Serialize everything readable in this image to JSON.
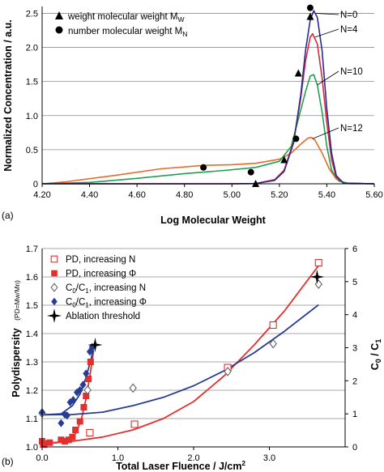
{
  "chart_data": [
    {
      "panel_label": "(a)",
      "type": "line",
      "xlabel": "Log Molecular Weight",
      "ylabel": "Normalized Concentration / a.u.",
      "xlim": [
        4.2,
        5.6
      ],
      "ylim": [
        0,
        2.6
      ],
      "x_ticks": [
        "4.20",
        "4.40",
        "4.60",
        "4.80",
        "5.00",
        "5.20",
        "5.40",
        "5.60"
      ],
      "y_ticks": [
        "0",
        "0.5",
        "1.0",
        "1.5",
        "2.0",
        "2.5"
      ],
      "grid": "horizontal",
      "legend": {
        "placement": "top-left",
        "items": [
          {
            "marker": "triangle",
            "label": "weight molecular weight M",
            "subscript": "W"
          },
          {
            "marker": "circle",
            "label": "number molecular weight M",
            "subscript": "N"
          }
        ]
      },
      "series": [
        {
          "name": "N=0",
          "color": "#2b2b8f",
          "points": [
            [
              4.2,
              0
            ],
            [
              5.0,
              0
            ],
            [
              5.1,
              0.003
            ],
            [
              5.18,
              0.05
            ],
            [
              5.22,
              0.18
            ],
            [
              5.26,
              0.6
            ],
            [
              5.29,
              1.3
            ],
            [
              5.31,
              1.95
            ],
            [
              5.33,
              2.4
            ],
            [
              5.345,
              2.54
            ],
            [
              5.36,
              2.44
            ],
            [
              5.38,
              1.95
            ],
            [
              5.4,
              1.1
            ],
            [
              5.42,
              0.45
            ],
            [
              5.44,
              0.12
            ],
            [
              5.47,
              0.01
            ],
            [
              5.6,
              0
            ]
          ]
        },
        {
          "name": "N=4",
          "color": "#d9263b",
          "points": [
            [
              4.2,
              0
            ],
            [
              5.0,
              0
            ],
            [
              5.1,
              0.004
            ],
            [
              5.18,
              0.06
            ],
            [
              5.22,
              0.2
            ],
            [
              5.26,
              0.62
            ],
            [
              5.29,
              1.25
            ],
            [
              5.31,
              1.8
            ],
            [
              5.33,
              2.15
            ],
            [
              5.34,
              2.2
            ],
            [
              5.36,
              2.05
            ],
            [
              5.38,
              1.55
            ],
            [
              5.4,
              0.9
            ],
            [
              5.42,
              0.35
            ],
            [
              5.44,
              0.1
            ],
            [
              5.47,
              0.01
            ],
            [
              5.6,
              0
            ]
          ]
        },
        {
          "name": "N=10",
          "color": "#20a050",
          "points": [
            [
              4.2,
              0
            ],
            [
              4.4,
              0.02
            ],
            [
              4.6,
              0.08
            ],
            [
              4.8,
              0.15
            ],
            [
              4.95,
              0.19
            ],
            [
              5.1,
              0.24
            ],
            [
              5.2,
              0.33
            ],
            [
              5.25,
              0.55
            ],
            [
              5.28,
              0.95
            ],
            [
              5.31,
              1.35
            ],
            [
              5.33,
              1.58
            ],
            [
              5.345,
              1.6
            ],
            [
              5.36,
              1.45
            ],
            [
              5.38,
              1.05
            ],
            [
              5.4,
              0.55
            ],
            [
              5.42,
              0.2
            ],
            [
              5.45,
              0.04
            ],
            [
              5.5,
              0
            ],
            [
              5.6,
              0
            ]
          ]
        },
        {
          "name": "N=12",
          "color": "#e86a2a",
          "points": [
            [
              4.2,
              0
            ],
            [
              4.3,
              0.03
            ],
            [
              4.5,
              0.12
            ],
            [
              4.7,
              0.22
            ],
            [
              4.88,
              0.27
            ],
            [
              5.0,
              0.28
            ],
            [
              5.1,
              0.3
            ],
            [
              5.2,
              0.36
            ],
            [
              5.25,
              0.45
            ],
            [
              5.29,
              0.58
            ],
            [
              5.32,
              0.67
            ],
            [
              5.335,
              0.68
            ],
            [
              5.35,
              0.64
            ],
            [
              5.38,
              0.45
            ],
            [
              5.41,
              0.22
            ],
            [
              5.44,
              0.07
            ],
            [
              5.48,
              0.01
            ],
            [
              5.6,
              0
            ]
          ]
        }
      ],
      "markers": {
        "weight_molecular_weight": [
          [
            5.1,
            0.0
          ],
          [
            5.22,
            0.35
          ],
          [
            5.28,
            1.62
          ],
          [
            5.33,
            2.45
          ]
        ],
        "number_molecular_weight": [
          [
            4.88,
            0.24
          ],
          [
            5.08,
            0.17
          ],
          [
            5.27,
            0.66
          ],
          [
            5.33,
            2.58
          ]
        ]
      }
    },
    {
      "panel_label": "(b)",
      "type": "scatter",
      "xlabel": "Total Laser Fluence / J/cm",
      "xlabel_sup": "2",
      "ylabel": "Polydispersity",
      "ylabel_small": "(PD=Mw/Mn)",
      "y2label": "C",
      "xlim": [
        0,
        4
      ],
      "ylim": [
        1.0,
        1.7
      ],
      "y2lim": [
        0,
        6
      ],
      "x_ticks": [
        "0.0",
        "1.0",
        "2.0",
        "3.0"
      ],
      "y_ticks": [
        "1.0",
        "1.1",
        "1.2",
        "1.3",
        "1.4",
        "1.5",
        "1.6",
        "1.7"
      ],
      "y2_ticks": [
        "0",
        "1",
        "2",
        "3",
        "4",
        "5",
        "6"
      ],
      "grid": "horizontal",
      "legend": {
        "placement": "top-left",
        "items": [
          {
            "marker": "open-square",
            "color": "#e03030",
            "label": "PD, increasing N"
          },
          {
            "marker": "filled-square",
            "color": "#e03030",
            "label": "PD, increasing Φ"
          },
          {
            "marker": "open-diamond",
            "color": "#555555",
            "label": "C",
            "sub1": "0",
            "mid": "/C",
            "sub2": "1",
            "tail": ", increasing N"
          },
          {
            "marker": "filled-diamond",
            "color": "#283c96",
            "label": "C",
            "sub1": "0",
            "mid": "/C",
            "sub2": "1",
            "tail": ", increasing Φ"
          },
          {
            "marker": "star",
            "color": "#000000",
            "label": "Ablation threshold"
          }
        ]
      },
      "series": [
        {
          "name": "PD, increasing N",
          "axis": "left",
          "color": "#e03030",
          "marker": "open-square",
          "points": [
            [
              0.02,
              1.01
            ],
            [
              0.63,
              1.05
            ],
            [
              1.22,
              1.08
            ],
            [
              2.45,
              1.28
            ],
            [
              3.05,
              1.43
            ],
            [
              3.65,
              1.65
            ]
          ]
        },
        {
          "name": "PD, increasing Φ",
          "axis": "left",
          "color": "#e03030",
          "marker": "filled-square",
          "points": [
            [
              0.0,
              1.02
            ],
            [
              0.02,
              1.01
            ],
            [
              0.1,
              1.015
            ],
            [
              0.25,
              1.025
            ],
            [
              0.3,
              1.02
            ],
            [
              0.35,
              1.025
            ],
            [
              0.4,
              1.035
            ],
            [
              0.44,
              1.06
            ],
            [
              0.5,
              1.09
            ],
            [
              0.55,
              1.14
            ],
            [
              0.58,
              1.18
            ],
            [
              0.61,
              1.24
            ],
            [
              0.64,
              1.3
            ]
          ]
        },
        {
          "name": "C0/C1, increasing N",
          "axis": "right",
          "color": "#555555",
          "marker": "open-diamond",
          "points": [
            [
              0.0,
              1.02
            ],
            [
              0.6,
              1.72
            ],
            [
              1.2,
              1.78
            ],
            [
              2.45,
              2.28
            ],
            [
              3.05,
              3.12
            ],
            [
              3.65,
              4.92
            ]
          ]
        },
        {
          "name": "C0/C1, increasing Φ",
          "axis": "right",
          "color": "#283c96",
          "marker": "filled-diamond",
          "points": [
            [
              0.0,
              1.05
            ],
            [
              0.25,
              0.72
            ],
            [
              0.3,
              0.98
            ],
            [
              0.33,
              0.95
            ],
            [
              0.37,
              1.35
            ],
            [
              0.41,
              1.42
            ],
            [
              0.46,
              1.65
            ],
            [
              0.5,
              1.72
            ],
            [
              0.54,
              1.88
            ],
            [
              0.58,
              2.22
            ],
            [
              0.63,
              2.88
            ],
            [
              0.66,
              3.02
            ]
          ]
        }
      ],
      "fits": [
        {
          "series": "PD, increasing N",
          "axis": "left",
          "color": "#e03030",
          "points": [
            [
              0,
              1.013
            ],
            [
              0.4,
              1.02
            ],
            [
              0.8,
              1.035
            ],
            [
              1.2,
              1.06
            ],
            [
              1.6,
              1.1
            ],
            [
              2.0,
              1.16
            ],
            [
              2.4,
              1.25
            ],
            [
              2.8,
              1.36
            ],
            [
              3.2,
              1.48
            ],
            [
              3.65,
              1.64
            ]
          ]
        },
        {
          "series": "PD, increasing Φ",
          "axis": "left",
          "color": "#e03030",
          "points": [
            [
              0,
              1.013
            ],
            [
              0.2,
              1.015
            ],
            [
              0.35,
              1.025
            ],
            [
              0.45,
              1.05
            ],
            [
              0.52,
              1.1
            ],
            [
              0.58,
              1.17
            ],
            [
              0.63,
              1.25
            ],
            [
              0.68,
              1.34
            ]
          ]
        },
        {
          "series": "C0/C1, increasing N",
          "axis": "right",
          "color": "#283c96",
          "points": [
            [
              0,
              0.97
            ],
            [
              0.4,
              0.98
            ],
            [
              0.8,
              1.05
            ],
            [
              1.2,
              1.25
            ],
            [
              1.6,
              1.5
            ],
            [
              2.0,
              1.85
            ],
            [
              2.4,
              2.3
            ],
            [
              2.8,
              2.85
            ],
            [
              3.2,
              3.5
            ],
            [
              3.65,
              4.3
            ]
          ]
        },
        {
          "series": "C0/C1, increasing Φ",
          "axis": "right",
          "color": "#283c96",
          "points": [
            [
              0,
              0.97
            ],
            [
              0.25,
              1.0
            ],
            [
              0.4,
              1.25
            ],
            [
              0.5,
              1.6
            ],
            [
              0.58,
              2.1
            ],
            [
              0.65,
              2.7
            ],
            [
              0.7,
              3.2
            ]
          ]
        }
      ],
      "ablation_threshold": [
        [
          0.7,
          1.36
        ],
        [
          3.63,
          1.6
        ]
      ]
    }
  ]
}
